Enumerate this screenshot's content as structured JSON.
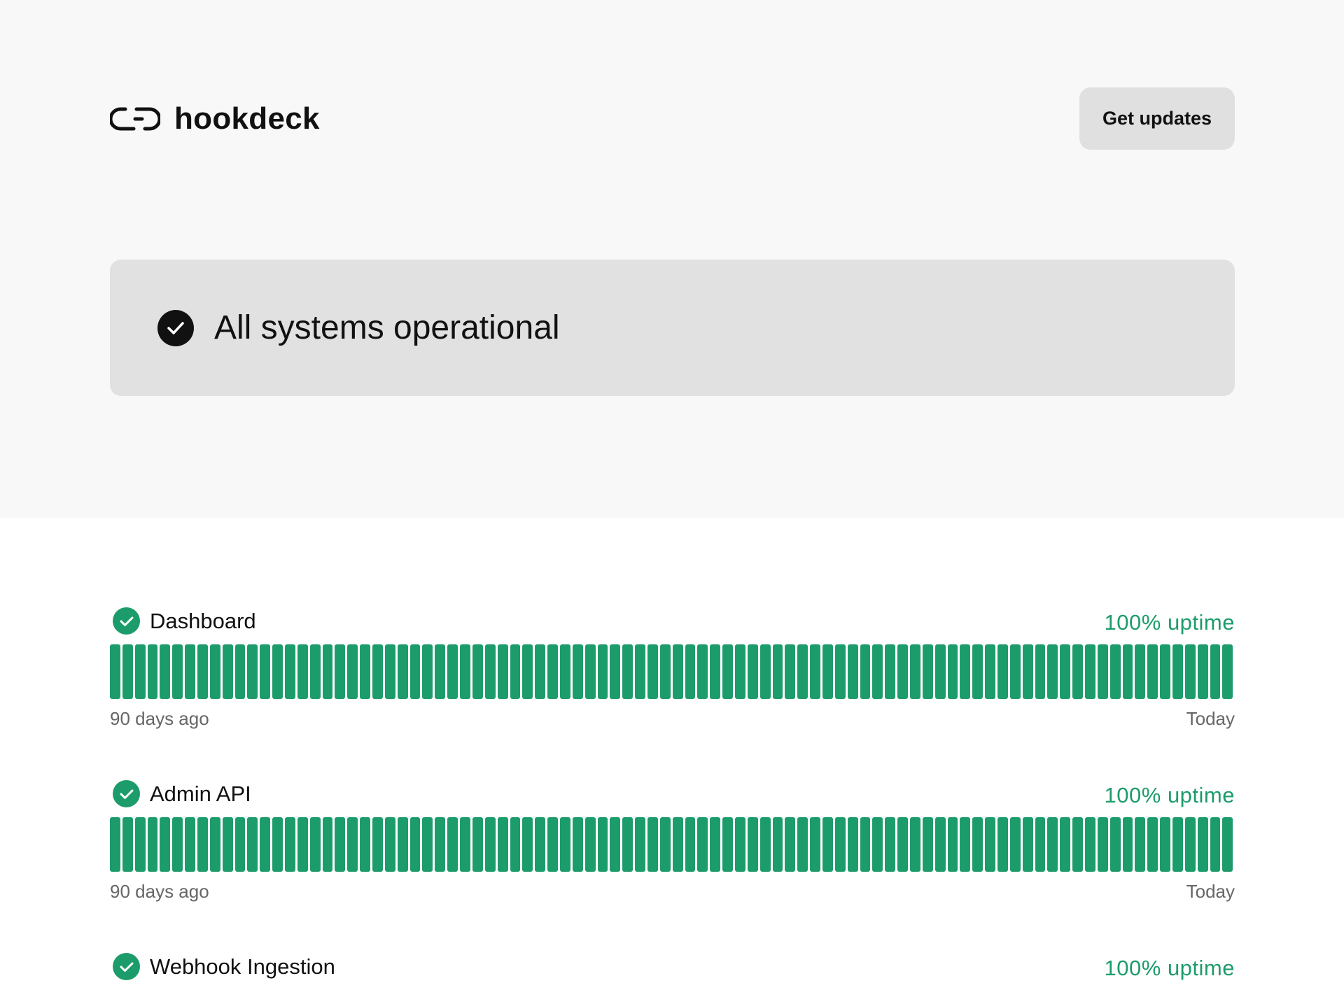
{
  "brand": {
    "name": "hookdeck",
    "logo_icon": "hookdeck-logo-icon"
  },
  "header": {
    "updates_label": "Get updates"
  },
  "status": {
    "text": "All systems operational",
    "icon": "check-circle-icon"
  },
  "colors": {
    "operational": "#1d9c6b",
    "banner": "#e1e1e1",
    "hero": "#f8f8f8"
  },
  "components": [
    {
      "name": "Dashboard",
      "uptime": "100% uptime",
      "days": 90,
      "day_status": "operational",
      "start_label": "90 days ago",
      "end_label": "Today"
    },
    {
      "name": "Admin API",
      "uptime": "100% uptime",
      "days": 90,
      "day_status": "operational",
      "start_label": "90 days ago",
      "end_label": "Today"
    },
    {
      "name": "Webhook Ingestion",
      "uptime": "100% uptime"
    }
  ]
}
